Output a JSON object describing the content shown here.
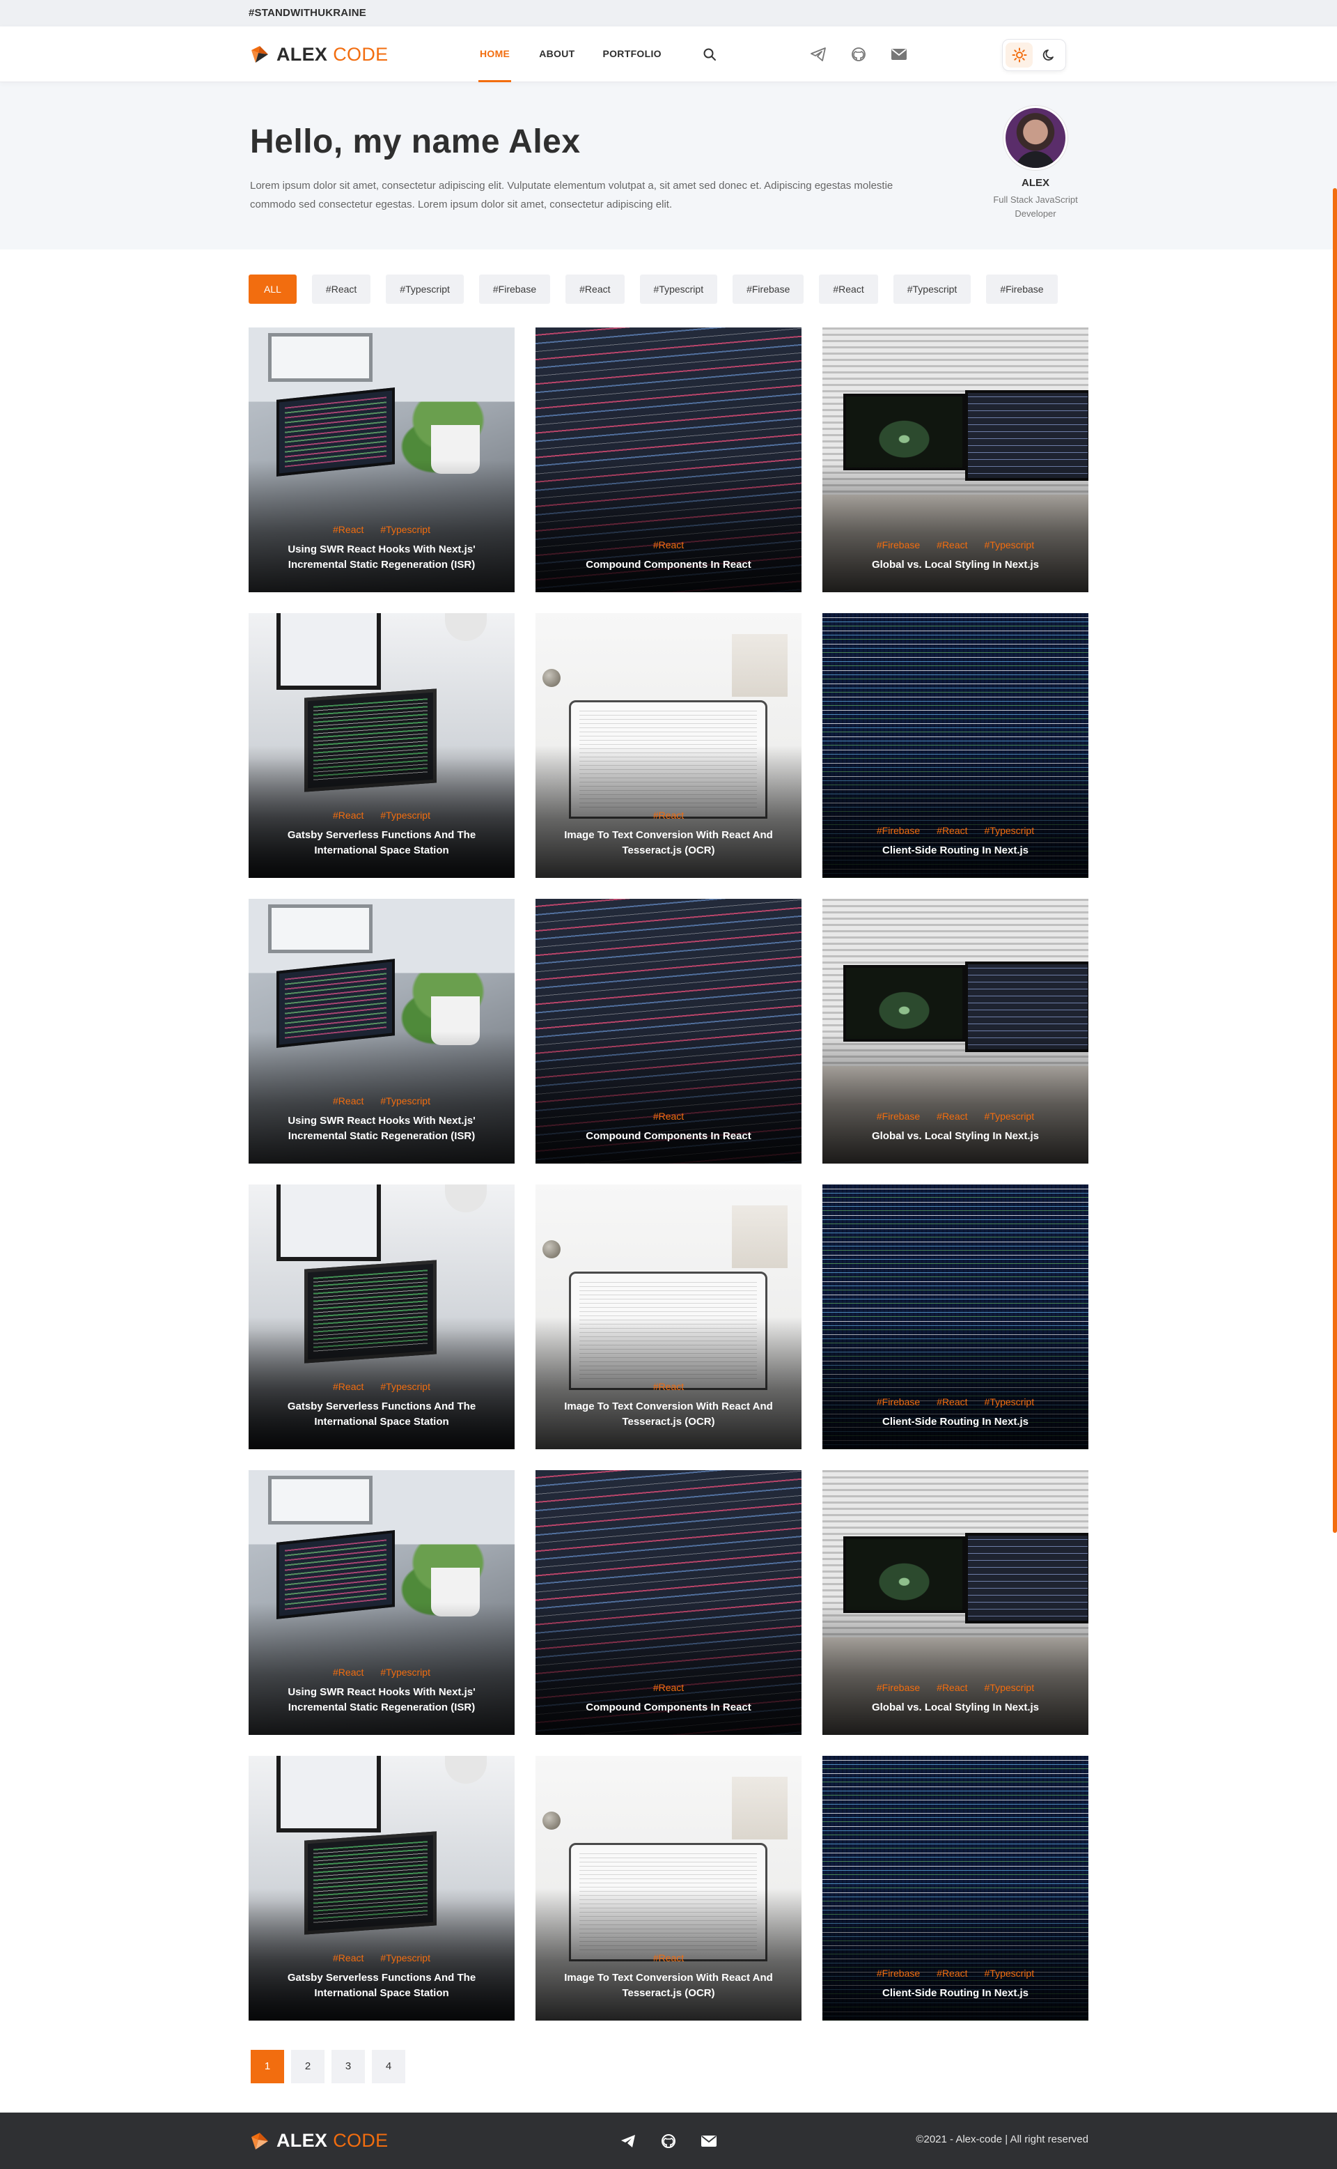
{
  "topbar": {
    "text": "#STANDWITHUKRAINE"
  },
  "brand": {
    "first": "ALEX",
    "second": "CODE",
    "accent": "#f26d0f"
  },
  "nav": {
    "items": [
      {
        "label": "HOME",
        "active": true
      },
      {
        "label": "ABOUT",
        "active": false
      },
      {
        "label": "PORTFOLIO",
        "active": false
      }
    ],
    "icons": [
      "search-icon",
      "telegram-icon",
      "github-icon",
      "mail-icon"
    ],
    "theme": {
      "light_icon": "sun-icon",
      "dark_icon": "moon-icon",
      "selected": "light"
    }
  },
  "hero": {
    "heading": "Hello, my name Alex",
    "text": "Lorem ipsum dolor sit amet, consectetur adipiscing elit. Vulputate elementum volutpat a, sit amet sed donec et. Adipiscing egestas molestie commodo sed consectetur egestas. Lorem ipsum dolor sit amet, consectetur adipiscing elit.",
    "profile": {
      "name": "ALEX",
      "role": "Full Stack JavaScript Developer"
    }
  },
  "filters": [
    "ALL",
    "#React",
    "#Typescript",
    "#Firebase",
    "#React",
    "#Typescript",
    "#Firebase",
    "#React",
    "#Typescript",
    "#Firebase"
  ],
  "posts": [
    {
      "title": "Using SWR React Hooks With Next.js' Incremental Static Regeneration (ISR)",
      "tags": [
        "#React",
        "#Typescript"
      ],
      "image": "laptop"
    },
    {
      "title": "Compound Components In React",
      "tags": [
        "#React"
      ],
      "image": "code"
    },
    {
      "title": "Global vs. Local Styling In Next.js",
      "tags": [
        "#Firebase",
        "#React",
        "#Typescript"
      ],
      "image": "desk"
    },
    {
      "title": "Gatsby Serverless Functions And The International Space Station",
      "tags": [
        "#React",
        "#Typescript"
      ],
      "image": "laptop2"
    },
    {
      "title": "Image To Text Conversion With React And Tesseract.js (OCR)",
      "tags": [
        "#React"
      ],
      "image": "white"
    },
    {
      "title": "Client-Side Routing In Next.js",
      "tags": [
        "#Firebase",
        "#React",
        "#Typescript"
      ],
      "image": "matrix"
    },
    {
      "title": "Using SWR React Hooks With Next.js' Incremental Static Regeneration (ISR)",
      "tags": [
        "#React",
        "#Typescript"
      ],
      "image": "laptop"
    },
    {
      "title": "Compound Components In React",
      "tags": [
        "#React"
      ],
      "image": "code"
    },
    {
      "title": "Global vs. Local Styling In Next.js",
      "tags": [
        "#Firebase",
        "#React",
        "#Typescript"
      ],
      "image": "desk"
    },
    {
      "title": "Gatsby Serverless Functions And The International Space Station",
      "tags": [
        "#React",
        "#Typescript"
      ],
      "image": "laptop2"
    },
    {
      "title": "Image To Text Conversion With React And Tesseract.js (OCR)",
      "tags": [
        "#React"
      ],
      "image": "white"
    },
    {
      "title": "Client-Side Routing In Next.js",
      "tags": [
        "#Firebase",
        "#React",
        "#Typescript"
      ],
      "image": "matrix"
    },
    {
      "title": "Using SWR React Hooks With Next.js' Incremental Static Regeneration (ISR)",
      "tags": [
        "#React",
        "#Typescript"
      ],
      "image": "laptop"
    },
    {
      "title": "Compound Components In React",
      "tags": [
        "#React"
      ],
      "image": "code"
    },
    {
      "title": "Global vs. Local Styling In Next.js",
      "tags": [
        "#Firebase",
        "#React",
        "#Typescript"
      ],
      "image": "desk"
    },
    {
      "title": "Gatsby Serverless Functions And The International Space Station",
      "tags": [
        "#React",
        "#Typescript"
      ],
      "image": "laptop2"
    },
    {
      "title": "Image To Text Conversion With React And Tesseract.js (OCR)",
      "tags": [
        "#React"
      ],
      "image": "white"
    },
    {
      "title": "Client-Side Routing In Next.js",
      "tags": [
        "#Firebase",
        "#React",
        "#Typescript"
      ],
      "image": "matrix"
    }
  ],
  "pagination": {
    "pages": [
      "1",
      "2",
      "3",
      "4"
    ],
    "current": "1"
  },
  "footer": {
    "copyright": "©2021 - Alex-code  |   All right reserved",
    "icons": [
      "telegram-icon",
      "github-icon",
      "mail-icon"
    ]
  }
}
